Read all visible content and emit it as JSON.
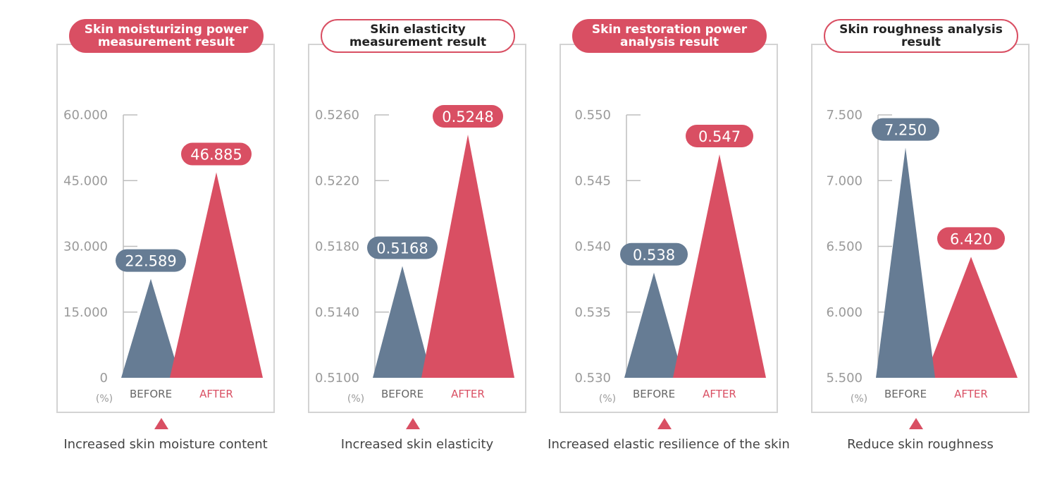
{
  "colors": {
    "before": "#667c94",
    "after": "#d94f63",
    "axis": "#bdbdbd",
    "tick_text": "#9a9a9a"
  },
  "chart_data": [
    {
      "type": "bar",
      "title": "Skin moisturizing power measurement result",
      "title_style": "filled",
      "categories": [
        "BEFORE",
        "AFTER"
      ],
      "values": [
        22.589,
        46.885
      ],
      "value_labels": [
        "22.589",
        "46.885"
      ],
      "yticks": [
        "0",
        "15.000",
        "30.000",
        "45.000",
        "60.000"
      ],
      "ylim": [
        0,
        60
      ],
      "unit": "(%)",
      "caption": "Increased skin moisture content"
    },
    {
      "type": "bar",
      "title": "Skin elasticity measurement result",
      "title_style": "outline",
      "categories": [
        "BEFORE",
        "AFTER"
      ],
      "values": [
        0.5168,
        0.5248
      ],
      "value_labels": [
        "0.5168",
        "0.5248"
      ],
      "yticks": [
        "0.5100",
        "0.5140",
        "0.5180",
        "0.5220",
        "0.5260"
      ],
      "ylim": [
        0.51,
        0.526
      ],
      "unit": "(%)",
      "caption": "Increased skin elasticity"
    },
    {
      "type": "bar",
      "title": "Skin restoration power analysis result",
      "title_style": "filled",
      "categories": [
        "BEFORE",
        "AFTER"
      ],
      "values": [
        0.538,
        0.547
      ],
      "value_labels": [
        "0.538",
        "0.547"
      ],
      "yticks": [
        "0.530",
        "0.535",
        "0.540",
        "0.545",
        "0.550"
      ],
      "ylim": [
        0.53,
        0.55
      ],
      "unit": "(%)",
      "caption": "Increased elastic resilience of the skin"
    },
    {
      "type": "bar",
      "title": "Skin roughness analysis result",
      "title_style": "outline",
      "categories": [
        "BEFORE",
        "AFTER"
      ],
      "values": [
        7.25,
        6.42
      ],
      "value_labels": [
        "7.250",
        "6.420"
      ],
      "yticks": [
        "5.500",
        "6.000",
        "6.500",
        "7.000",
        "7.500"
      ],
      "ylim": [
        5.5,
        7.5
      ],
      "unit": "(%)",
      "caption": "Reduce skin roughness"
    }
  ]
}
